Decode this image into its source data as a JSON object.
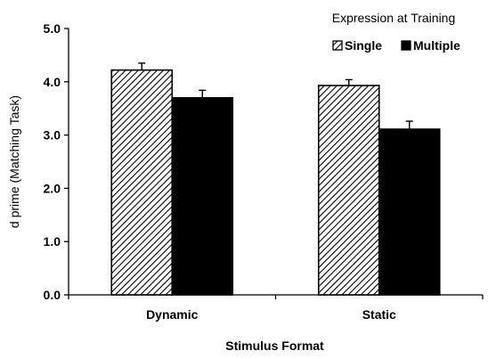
{
  "chart_data": {
    "type": "bar",
    "categories": [
      "Dynamic",
      "Static"
    ],
    "series": [
      {
        "name": "Single",
        "values": [
          4.22,
          3.93
        ],
        "errors": [
          0.13,
          0.11
        ],
        "fill": "hatched"
      },
      {
        "name": "Multiple",
        "values": [
          3.7,
          3.11
        ],
        "errors": [
          0.14,
          0.15
        ],
        "fill": "#000000"
      }
    ],
    "xlabel": "Stimulus Format",
    "ylabel": "d prime (Matching Task)",
    "ylim": [
      0,
      5
    ],
    "yticks": [
      "0.0",
      "1.0",
      "2.0",
      "3.0",
      "4.0",
      "5.0"
    ],
    "legend_title": "Expression at Training",
    "legend_placement": "top-right",
    "grid": false,
    "colors": {
      "axis": "#000000",
      "hatch_line": "#000000",
      "hatch_background": "#ffffff",
      "multiple_fill": "#000000"
    }
  }
}
